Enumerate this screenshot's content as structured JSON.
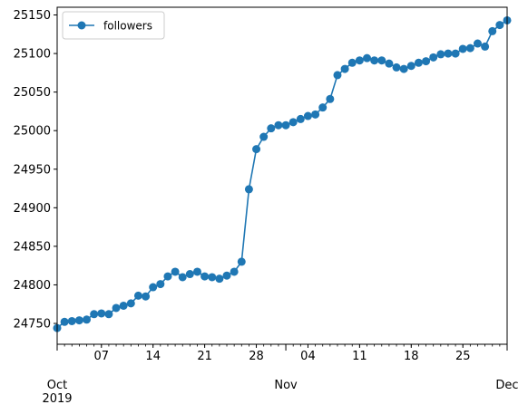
{
  "chart_data": {
    "type": "line",
    "title": "",
    "xlabel": "",
    "ylabel": "",
    "grid": false,
    "legend_position": "top-left",
    "series_color": "#1f77b4",
    "ylim": [
      24723,
      25160
    ],
    "xlim": [
      "2019-10-01",
      "2019-12-01"
    ],
    "y_ticks": [
      24750,
      24800,
      24850,
      24900,
      24950,
      25000,
      25050,
      25100,
      25150
    ],
    "x_major_ticks": [
      {
        "date": "2019-10-01",
        "label": "Oct",
        "sublabel": "2019"
      },
      {
        "date": "2019-11-01",
        "label": "Nov",
        "sublabel": ""
      },
      {
        "date": "2019-12-01",
        "label": "Dec",
        "sublabel": ""
      }
    ],
    "x_minor_ticks": [
      {
        "date": "2019-10-07",
        "label": "07"
      },
      {
        "date": "2019-10-14",
        "label": "14"
      },
      {
        "date": "2019-10-21",
        "label": "21"
      },
      {
        "date": "2019-10-28",
        "label": "28"
      },
      {
        "date": "2019-11-04",
        "label": "04"
      },
      {
        "date": "2019-11-11",
        "label": "11"
      },
      {
        "date": "2019-11-18",
        "label": "18"
      },
      {
        "date": "2019-11-25",
        "label": "25"
      }
    ],
    "series": [
      {
        "name": "followers",
        "x": [
          "2019-10-01",
          "2019-10-02",
          "2019-10-03",
          "2019-10-04",
          "2019-10-05",
          "2019-10-06",
          "2019-10-07",
          "2019-10-08",
          "2019-10-09",
          "2019-10-10",
          "2019-10-11",
          "2019-10-12",
          "2019-10-13",
          "2019-10-14",
          "2019-10-15",
          "2019-10-16",
          "2019-10-17",
          "2019-10-18",
          "2019-10-19",
          "2019-10-20",
          "2019-10-21",
          "2019-10-22",
          "2019-10-23",
          "2019-10-24",
          "2019-10-25",
          "2019-10-26",
          "2019-10-27",
          "2019-10-28",
          "2019-10-29",
          "2019-10-30",
          "2019-10-31",
          "2019-11-01",
          "2019-11-02",
          "2019-11-03",
          "2019-11-04",
          "2019-11-05",
          "2019-11-06",
          "2019-11-07",
          "2019-11-08",
          "2019-11-09",
          "2019-11-10",
          "2019-11-11",
          "2019-11-12",
          "2019-11-13",
          "2019-11-14",
          "2019-11-15",
          "2019-11-16",
          "2019-11-17",
          "2019-11-18",
          "2019-11-19",
          "2019-11-20",
          "2019-11-21",
          "2019-11-22",
          "2019-11-23",
          "2019-11-24",
          "2019-11-25",
          "2019-11-26",
          "2019-11-27",
          "2019-11-28",
          "2019-11-29",
          "2019-11-30",
          "2019-12-01"
        ],
        "values": [
          24744,
          24752,
          24753,
          24754,
          24755,
          24762,
          24763,
          24762,
          24770,
          24773,
          24776,
          24786,
          24785,
          24797,
          24801,
          24811,
          24817,
          24810,
          24814,
          24817,
          24811,
          24810,
          24808,
          24812,
          24817,
          24830,
          24924,
          24976,
          24992,
          25003,
          25007,
          25007,
          25011,
          25015,
          25019,
          25021,
          25030,
          25041,
          25072,
          25080,
          25088,
          25091,
          25094,
          25091,
          25091,
          25087,
          25082,
          25080,
          25084,
          25088,
          25090,
          25095,
          25099,
          25100,
          25100,
          25106,
          25107,
          25113,
          25109,
          25129,
          25137,
          25143
        ]
      }
    ]
  }
}
